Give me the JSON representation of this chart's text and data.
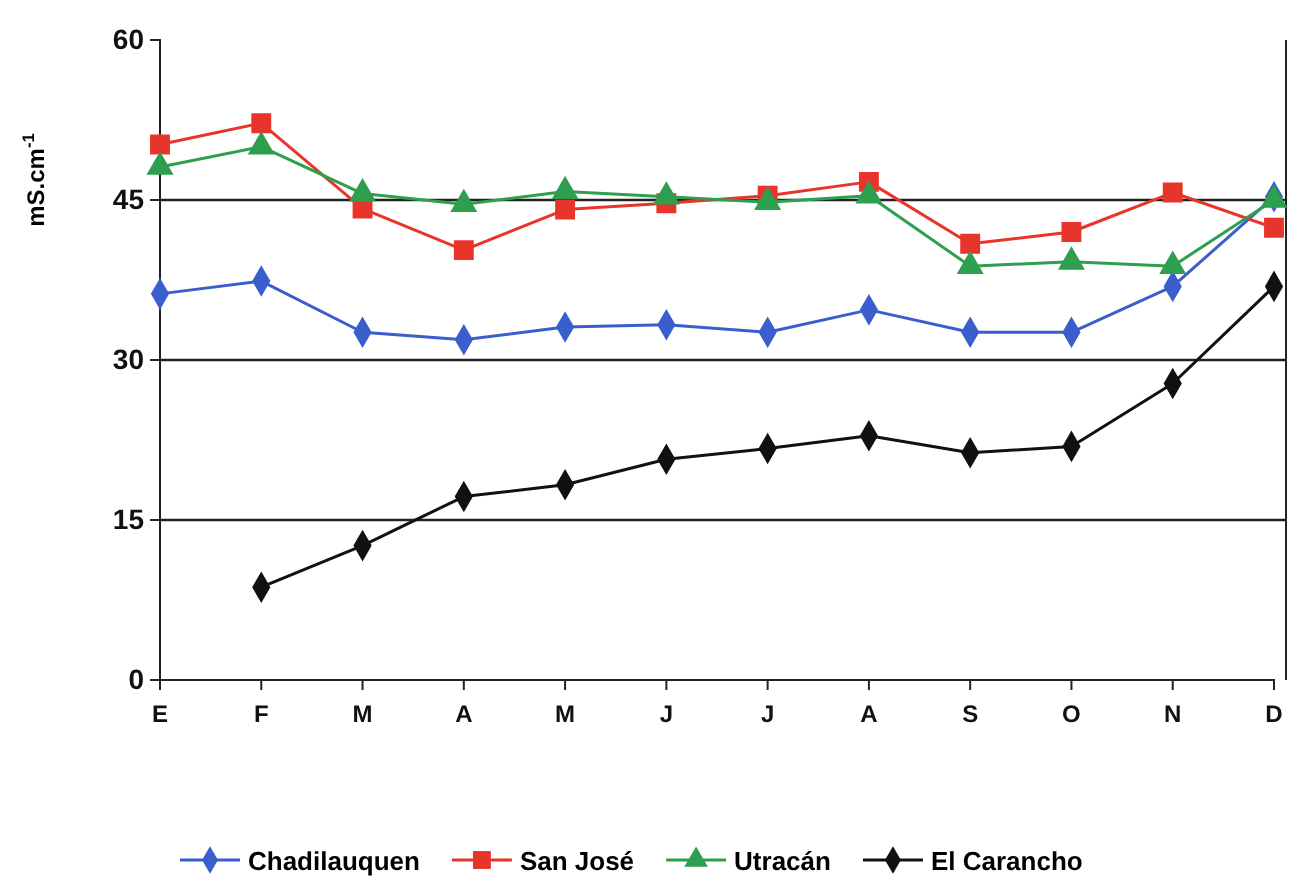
{
  "chart_data": {
    "type": "line",
    "ylabel": "mS.cm$^{-1}$",
    "categories": [
      "E",
      "F",
      "M",
      "A",
      "M",
      "J",
      "J",
      "A",
      "S",
      "O",
      "N",
      "D"
    ],
    "ylim": [
      0,
      60
    ],
    "yticks": [
      0,
      15,
      30,
      45,
      60
    ],
    "grid": "y",
    "legend": "bottom",
    "line_style": "solid",
    "series": [
      {
        "name": "Chadilauquen",
        "color": "#3a5fcd",
        "marker": "diamond",
        "values": [
          36.2,
          37.4,
          32.6,
          31.9,
          33.1,
          33.3,
          32.6,
          34.7,
          32.6,
          32.6,
          36.9,
          45.3
        ]
      },
      {
        "name": "San José",
        "color": "#e8352b",
        "marker": "square",
        "values": [
          50.2,
          52.2,
          44.2,
          40.3,
          44.1,
          44.7,
          45.4,
          46.7,
          40.9,
          42,
          45.7,
          42.4
        ]
      },
      {
        "name": "Utracán",
        "color": "#2e9e4f",
        "marker": "triangle",
        "values": [
          48.1,
          50,
          45.6,
          44.6,
          45.8,
          45.3,
          44.8,
          45.4,
          38.8,
          39.2,
          38.8,
          45
        ]
      },
      {
        "name": "El Carancho",
        "color": "#111111",
        "marker": "diamond",
        "values": [
          null,
          8.7,
          12.6,
          17.2,
          18.3,
          20.7,
          21.7,
          22.9,
          21.3,
          21.9,
          27.8,
          36.9
        ]
      }
    ]
  }
}
